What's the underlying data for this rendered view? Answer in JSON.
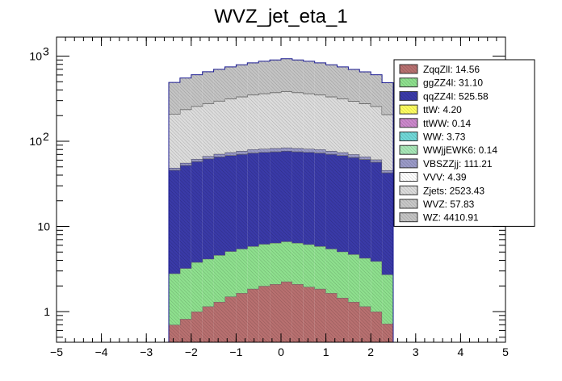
{
  "chart_data": {
    "type": "bar",
    "title": "WVZ_jet_eta_1",
    "xlabel": "",
    "ylabel": "",
    "stacked": true,
    "ylog": true,
    "xlim": [
      -5,
      5
    ],
    "ylim": [
      0.42,
      1700
    ],
    "x_ticks": [
      "−5",
      "−4",
      "−3",
      "−2",
      "−1",
      "0",
      "1",
      "2",
      "3",
      "4",
      "5"
    ],
    "y_ticks": [
      {
        "value": 1,
        "label": "1"
      },
      {
        "value": 10,
        "label": "10"
      },
      {
        "value": 100,
        "label": "10",
        "exp": "2"
      },
      {
        "value": 1000,
        "label": "10",
        "exp": "3"
      }
    ],
    "bin_edges": [
      -2.5,
      -2.25,
      -2.0,
      -1.75,
      -1.5,
      -1.25,
      -1.0,
      -0.75,
      -0.5,
      -0.25,
      0.0,
      0.25,
      0.5,
      0.75,
      1.0,
      1.25,
      1.5,
      1.75,
      2.0,
      2.25,
      2.5
    ],
    "legend_position": "top-right",
    "series": [
      {
        "name": "ZqqZll: 14.56",
        "color": "#b87070",
        "values": [
          0.7,
          0.82,
          1.0,
          1.15,
          1.3,
          1.5,
          1.65,
          1.85,
          2.0,
          2.1,
          2.25,
          2.1,
          1.95,
          1.85,
          1.65,
          1.45,
          1.3,
          1.15,
          1.0,
          0.72
        ]
      },
      {
        "name": "ggZZ4l: 31.10",
        "color": "#8ee08e",
        "values": [
          2.1,
          2.4,
          2.8,
          3.0,
          3.3,
          3.6,
          3.8,
          4.0,
          4.2,
          4.3,
          4.4,
          4.3,
          4.2,
          4.0,
          3.8,
          3.6,
          3.4,
          3.1,
          2.9,
          2.0
        ]
      },
      {
        "name": "qqZZ4l: 525.58",
        "color": "#3a3aa8",
        "values": [
          43,
          49,
          54,
          58,
          61,
          63,
          65,
          67,
          68,
          69,
          70,
          69,
          68,
          67,
          65,
          63,
          60,
          57,
          53,
          40
        ]
      },
      {
        "name": "ttW: 4.20",
        "color": "#ffff60",
        "values": [
          0.15,
          0.17,
          0.18,
          0.19,
          0.2,
          0.21,
          0.22,
          0.23,
          0.23,
          0.24,
          0.24,
          0.24,
          0.23,
          0.23,
          0.22,
          0.21,
          0.2,
          0.19,
          0.18,
          0.15
        ]
      },
      {
        "name": "ttWW: 0.14",
        "color": "#cc88cc",
        "values": [
          0.005,
          0.006,
          0.006,
          0.007,
          0.007,
          0.007,
          0.007,
          0.008,
          0.008,
          0.008,
          0.008,
          0.008,
          0.008,
          0.008,
          0.007,
          0.007,
          0.007,
          0.006,
          0.006,
          0.005
        ]
      },
      {
        "name": "WW: 3.73",
        "color": "#70d8d8",
        "values": [
          0.12,
          0.14,
          0.16,
          0.17,
          0.18,
          0.19,
          0.2,
          0.21,
          0.21,
          0.22,
          0.22,
          0.22,
          0.21,
          0.21,
          0.2,
          0.19,
          0.18,
          0.17,
          0.16,
          0.12
        ]
      },
      {
        "name": "WWjjEWK6: 0.14",
        "color": "#a8e8b8",
        "values": [
          0.005,
          0.006,
          0.006,
          0.007,
          0.007,
          0.007,
          0.007,
          0.008,
          0.008,
          0.008,
          0.008,
          0.008,
          0.008,
          0.008,
          0.007,
          0.007,
          0.007,
          0.006,
          0.006,
          0.005
        ]
      },
      {
        "name": "VBSZZjj: 111.21",
        "color": "#9a9ac8",
        "values": [
          2.5,
          3.0,
          3.6,
          4.2,
          4.8,
          5.4,
          5.9,
          6.3,
          6.6,
          6.8,
          6.9,
          6.8,
          6.6,
          6.3,
          5.9,
          5.4,
          4.8,
          4.2,
          3.6,
          2.5
        ]
      },
      {
        "name": "VVV: 4.39",
        "color": "#ffffff",
        "values": [
          0.15,
          0.17,
          0.19,
          0.2,
          0.21,
          0.22,
          0.23,
          0.24,
          0.24,
          0.25,
          0.25,
          0.25,
          0.24,
          0.24,
          0.23,
          0.22,
          0.21,
          0.2,
          0.19,
          0.15
        ]
      },
      {
        "name": "Zjets: 2523.43",
        "color": "#dcdcdc",
        "values": [
          160,
          180,
          195,
          210,
          225,
          240,
          255,
          270,
          280,
          290,
          300,
          290,
          280,
          270,
          255,
          240,
          225,
          210,
          195,
          160
        ]
      },
      {
        "name": "WVZ: 57.83",
        "color": "#c8c8c8",
        "values": [
          1.5,
          1.8,
          2.1,
          2.4,
          2.7,
          2.9,
          3.1,
          3.3,
          3.4,
          3.5,
          3.5,
          3.5,
          3.4,
          3.3,
          3.1,
          2.9,
          2.7,
          2.4,
          2.1,
          1.5
        ]
      },
      {
        "name": "WZ: 4410.91",
        "color": "#c4c4c4",
        "values": [
          280,
          315,
          345,
          375,
          400,
          430,
          455,
          480,
          505,
          525,
          545,
          525,
          505,
          480,
          455,
          430,
          400,
          375,
          345,
          280
        ]
      }
    ]
  }
}
